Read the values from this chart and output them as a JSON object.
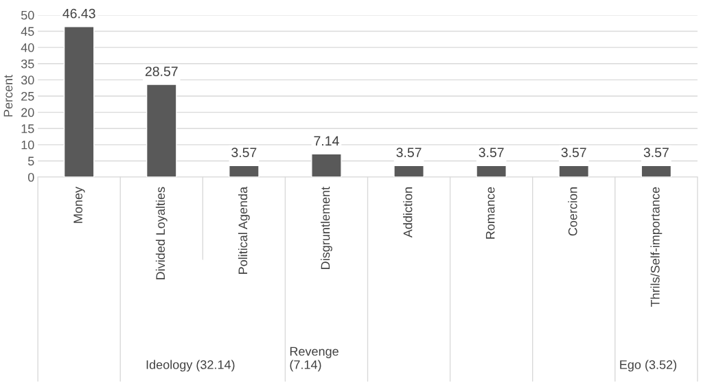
{
  "chart_data": {
    "type": "bar",
    "ylabel": "Percent",
    "categories": [
      "Money",
      "Divided Loyalties",
      "Political Agenda",
      "Disgruntlement",
      "Addiction",
      "Romance",
      "Coercion",
      "Thrils/Self-importance"
    ],
    "values": [
      46.43,
      28.57,
      3.57,
      7.14,
      3.57,
      3.57,
      3.57,
      3.57
    ],
    "color": "#595959",
    "ylim": [
      0,
      50
    ],
    "yticks": [
      0,
      5,
      10,
      15,
      20,
      25,
      30,
      35,
      40,
      45,
      50
    ],
    "grid": "y",
    "data_labels": true,
    "annotations": [
      "Ideology (32.14)",
      "Revenge\n(7.14)",
      "Ego (3.52)"
    ]
  }
}
